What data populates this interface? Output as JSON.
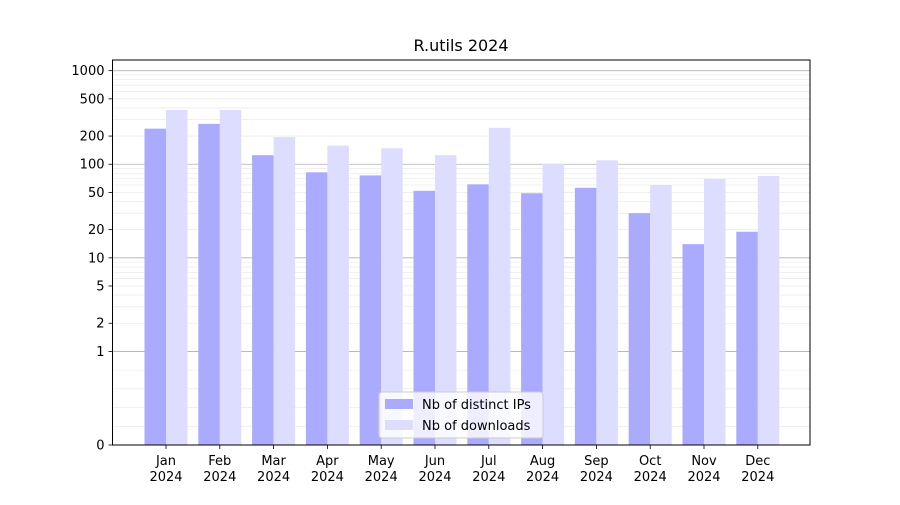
{
  "chart_data": {
    "type": "bar",
    "title": "R.utils 2024",
    "xlabel": "",
    "ylabel": "",
    "yscale": "symlog",
    "ylim": [
      0,
      1300
    ],
    "yticks": [
      0,
      1,
      2,
      5,
      10,
      20,
      50,
      100,
      200,
      500,
      1000
    ],
    "ytick_labels": [
      "0",
      "1",
      "2",
      "5",
      "10",
      "20",
      "50",
      "100",
      "200",
      "500",
      "1000"
    ],
    "grid": true,
    "legend_position": "bottom-center",
    "categories": [
      {
        "month": "Jan",
        "year": "2024"
      },
      {
        "month": "Feb",
        "year": "2024"
      },
      {
        "month": "Mar",
        "year": "2024"
      },
      {
        "month": "Apr",
        "year": "2024"
      },
      {
        "month": "May",
        "year": "2024"
      },
      {
        "month": "Jun",
        "year": "2024"
      },
      {
        "month": "Jul",
        "year": "2024"
      },
      {
        "month": "Aug",
        "year": "2024"
      },
      {
        "month": "Sep",
        "year": "2024"
      },
      {
        "month": "Oct",
        "year": "2024"
      },
      {
        "month": "Nov",
        "year": "2024"
      },
      {
        "month": "Dec",
        "year": "2024"
      }
    ],
    "series": [
      {
        "name": "Nb of distinct IPs",
        "color": "#aaaaff",
        "values": [
          240,
          270,
          125,
          82,
          76,
          52,
          61,
          49,
          56,
          30,
          14,
          19
        ]
      },
      {
        "name": "Nb of downloads",
        "color": "#ddddff",
        "values": [
          380,
          380,
          195,
          158,
          148,
          125,
          245,
          101,
          110,
          60,
          70,
          75
        ]
      }
    ]
  }
}
